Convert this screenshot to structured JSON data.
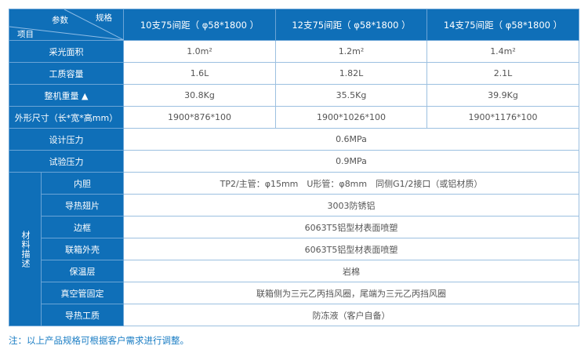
{
  "header": {
    "param": "参数",
    "spec": "规格",
    "item": "项目",
    "columns": [
      "10支75间距（ φ58*1800 ）",
      "12支75间距（ φ58*1800 ）",
      "14支75间距（ φ58*1800 ）"
    ]
  },
  "rows": [
    {
      "label": "采光面积",
      "values": [
        "1.0m²",
        "1.2m²",
        "1.4m²"
      ]
    },
    {
      "label": "工质容量",
      "values": [
        "1.6L",
        "1.82L",
        "2.1L"
      ]
    },
    {
      "label": "整机重量 ▲",
      "values": [
        "30.8Kg",
        "35.5Kg",
        "39.9Kg"
      ]
    },
    {
      "label": "外形尺寸（长*宽*高mm）",
      "values": [
        "1900*876*100",
        "1900*1026*100",
        "1900*1176*100"
      ]
    },
    {
      "label": "设计压力",
      "value": "0.6MPa"
    },
    {
      "label": "试验压力",
      "value": "0.9MPa"
    }
  ],
  "materials": {
    "group": "材料描述",
    "rows": [
      {
        "label": "内胆",
        "value": "TP2/主管：φ15mm　U形管：φ8mm　同侧G1/2接口（或铝材质）"
      },
      {
        "label": "导热翅片",
        "value": "3003防锈铝"
      },
      {
        "label": "边框",
        "value": "6063T5铝型材表面喷塑"
      },
      {
        "label": "联箱外壳",
        "value": "6063T5铝型材表面喷塑"
      },
      {
        "label": "保温层",
        "value": "岩棉"
      },
      {
        "label": "真空管固定",
        "value": "联箱侧为三元乙丙挡风圈，尾端为三元乙丙挡风圈"
      },
      {
        "label": "导热工质",
        "value": "防冻液（客户自备）"
      }
    ]
  },
  "note": "注：以上产品规格可根据客户需求进行调整。",
  "colors": {
    "header": "#0f6fb8",
    "border": "#9cc0e0",
    "note": "#1a7dc4"
  }
}
